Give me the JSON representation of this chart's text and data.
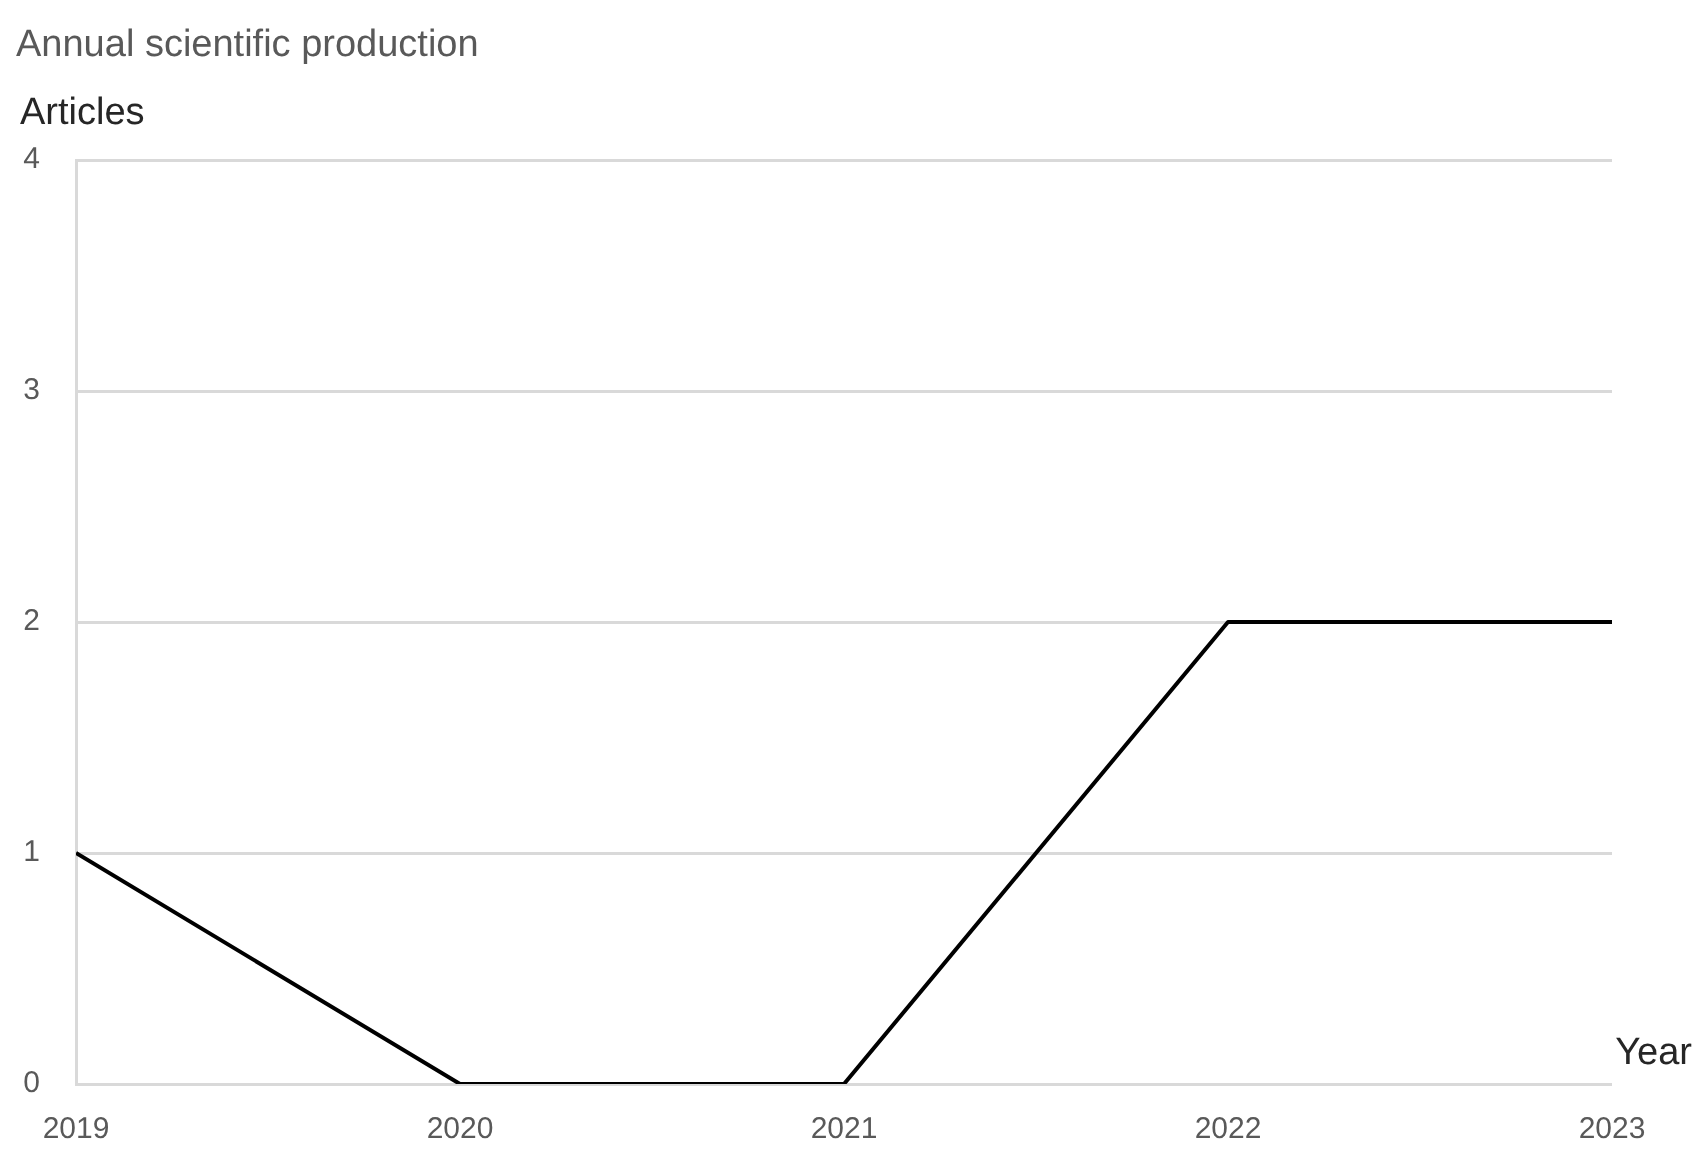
{
  "chart_data": {
    "type": "line",
    "title": "Annual scientific production",
    "xlabel": "Year",
    "ylabel": "Articles",
    "x": [
      2019,
      2020,
      2021,
      2022,
      2023
    ],
    "series": [
      {
        "color": "#000000",
        "values": [
          1,
          0,
          0,
          2,
          2
        ]
      }
    ],
    "xlim": [
      2019,
      2023
    ],
    "xticks": [
      2019,
      2020,
      2021,
      2022,
      2023
    ],
    "ylim": [
      0,
      4
    ],
    "yticks": [
      0,
      1,
      2,
      3,
      4
    ],
    "grid": "y",
    "legend": false,
    "marker": "none",
    "line_style": "solid"
  }
}
